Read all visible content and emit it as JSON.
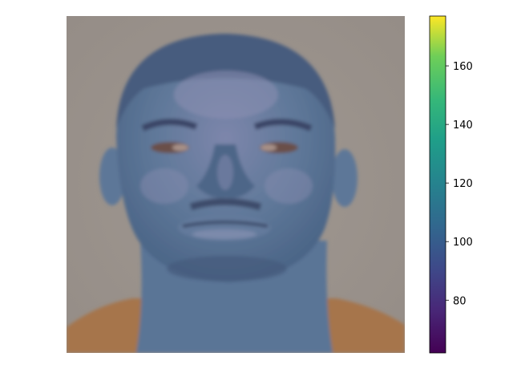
{
  "figure": {
    "background": "#ffffff",
    "image": {
      "subject": "face-portrait-heatmap",
      "dominant_colors": [
        "#9a928b",
        "#56708f",
        "#b07a4c",
        "#3d4c6d"
      ]
    },
    "colorbar": {
      "colormap": "viridis",
      "range": [
        62,
        177
      ],
      "ticks": [
        {
          "value": 80,
          "label": "80"
        },
        {
          "value": 100,
          "label": "100"
        },
        {
          "value": 120,
          "label": "120"
        },
        {
          "value": 140,
          "label": "140"
        },
        {
          "value": 160,
          "label": "160"
        }
      ]
    }
  }
}
